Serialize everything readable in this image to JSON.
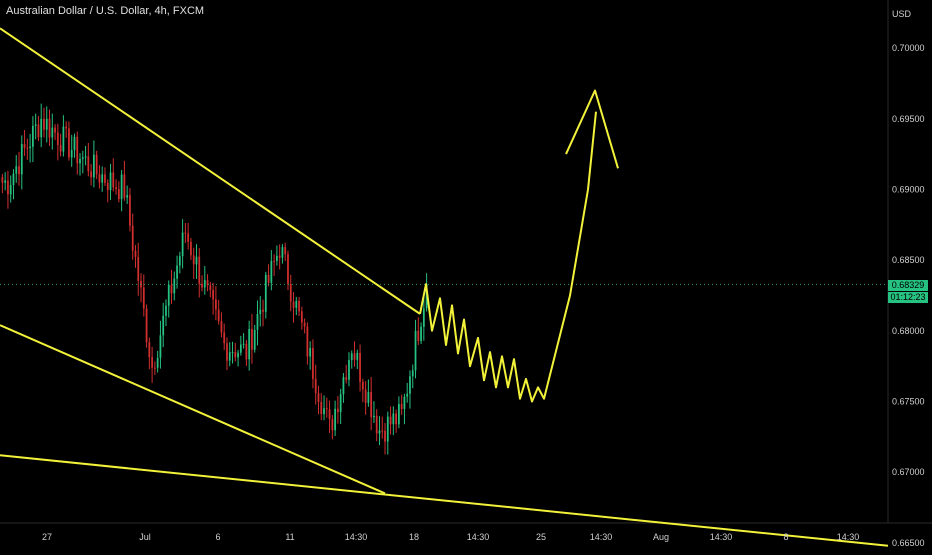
{
  "header": {
    "title": "Australian Dollar / U.S. Dollar, 4h, FXCM"
  },
  "price_axis": {
    "unit": "USD",
    "ticks": [
      "0.70000",
      "0.69500",
      "0.69000",
      "0.68500",
      "0.68000",
      "0.67500",
      "0.67000",
      "0.66500"
    ]
  },
  "time_axis": {
    "ticks": [
      "27",
      "Jul",
      "6",
      "11",
      "14:30",
      "18",
      "14:30",
      "25",
      "14:30",
      "Aug",
      "14:30",
      "8",
      "14:30"
    ]
  },
  "last_price": {
    "value": "0.68329",
    "countdown": "01:12:23"
  },
  "colors": {
    "background": "#000000",
    "up_candle": "#26c281",
    "down_candle": "#d32f2f",
    "trendline": "#f2f23a",
    "projection": "#f2f23a",
    "axis_text": "#d0d0d0",
    "price_tag": "#26c281"
  },
  "chart_data": {
    "type": "candlestick",
    "title": "Australian Dollar / U.S. Dollar, 4h, FXCM",
    "ylabel": "USD",
    "ylim": [
      0.6645,
      0.7034
    ],
    "x_tick_labels": [
      "27",
      "Jul",
      "6",
      "11",
      "14:30",
      "18",
      "14:30",
      "25",
      "14:30",
      "Aug",
      "14:30",
      "8",
      "14:30"
    ],
    "segments": [
      {
        "from": 0.6905,
        "to": 0.6905,
        "n": 3
      },
      {
        "from": 0.6905,
        "to": 0.695,
        "n": 12
      },
      {
        "from": 0.695,
        "to": 0.6912,
        "n": 20
      },
      {
        "from": 0.6912,
        "to": 0.69,
        "n": 10
      },
      {
        "from": 0.69,
        "to": 0.6775,
        "n": 10
      },
      {
        "from": 0.6775,
        "to": 0.687,
        "n": 12
      },
      {
        "from": 0.687,
        "to": 0.679,
        "n": 14
      },
      {
        "from": 0.679,
        "to": 0.6785,
        "n": 8
      },
      {
        "from": 0.6785,
        "to": 0.686,
        "n": 12
      },
      {
        "from": 0.686,
        "to": 0.673,
        "n": 18
      },
      {
        "from": 0.673,
        "to": 0.679,
        "n": 8
      },
      {
        "from": 0.679,
        "to": 0.673,
        "n": 10
      },
      {
        "from": 0.673,
        "to": 0.674,
        "n": 8
      },
      {
        "from": 0.674,
        "to": 0.6833,
        "n": 9
      }
    ],
    "last_close": 0.68329,
    "trendlines": [
      {
        "name": "upper-resistance",
        "start": 0.7014,
        "end": 0.6812
      },
      {
        "name": "lower-support",
        "start": 0.6804,
        "end": 0.6685
      },
      {
        "name": "long-support",
        "start": 0.6712,
        "end": 0.6648
      }
    ],
    "projection": {
      "name": "drawn-forecast-path",
      "y": [
        0.6812,
        0.6833,
        0.68,
        0.6823,
        0.679,
        0.6818,
        0.6784,
        0.6808,
        0.6775,
        0.6795,
        0.6765,
        0.6785,
        0.676,
        0.6782,
        0.676,
        0.678,
        0.6752,
        0.6766,
        0.675,
        0.676,
        0.6752,
        0.6825,
        0.69,
        0.6955
      ],
      "arrow_head": [
        0.6925,
        0.697,
        0.6915
      ]
    }
  }
}
